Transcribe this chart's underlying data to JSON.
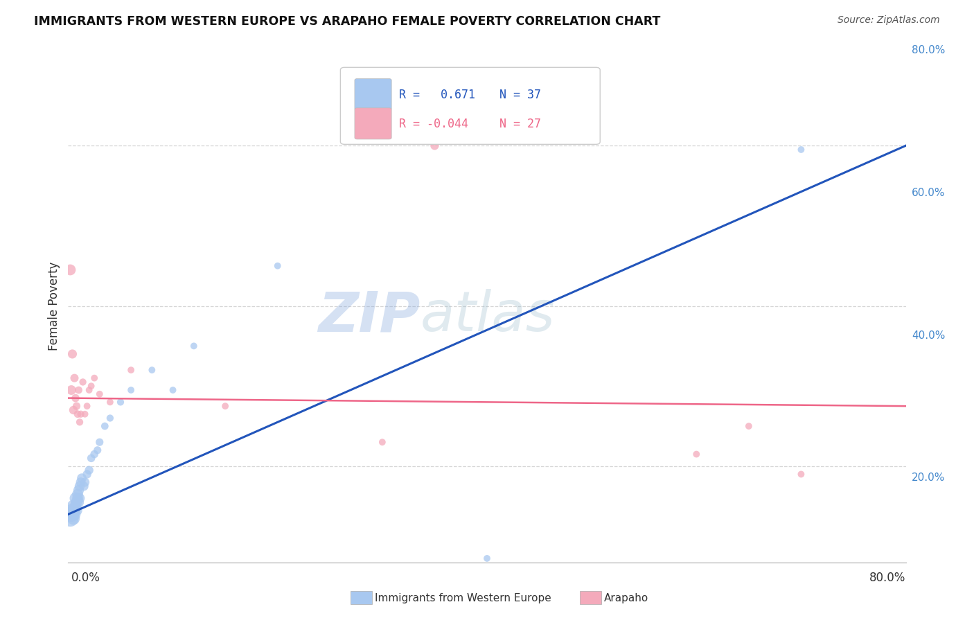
{
  "title": "IMMIGRANTS FROM WESTERN EUROPE VS ARAPAHO FEMALE POVERTY CORRELATION CHART",
  "source": "Source: ZipAtlas.com",
  "ylabel": "Female Poverty",
  "watermark_zip": "ZIP",
  "watermark_atlas": "atlas",
  "legend_blue_r": "R =   0.671",
  "legend_blue_n": "N = 37",
  "legend_pink_r": "R = -0.044",
  "legend_pink_n": "N = 27",
  "blue_color": "#A8C8F0",
  "pink_color": "#F4AABB",
  "blue_line_color": "#2255BB",
  "pink_line_color": "#EE6688",
  "blue_scatter_x": [
    0.002,
    0.003,
    0.004,
    0.005,
    0.005,
    0.006,
    0.006,
    0.007,
    0.007,
    0.008,
    0.008,
    0.009,
    0.009,
    0.01,
    0.01,
    0.011,
    0.011,
    0.012,
    0.013,
    0.015,
    0.016,
    0.018,
    0.02,
    0.022,
    0.025,
    0.028,
    0.03,
    0.035,
    0.04,
    0.05,
    0.06,
    0.08,
    0.1,
    0.12,
    0.2,
    0.4,
    0.7
  ],
  "blue_scatter_y": [
    0.135,
    0.14,
    0.145,
    0.135,
    0.15,
    0.14,
    0.145,
    0.15,
    0.16,
    0.145,
    0.155,
    0.16,
    0.165,
    0.155,
    0.17,
    0.16,
    0.175,
    0.18,
    0.185,
    0.175,
    0.18,
    0.19,
    0.195,
    0.21,
    0.215,
    0.22,
    0.23,
    0.25,
    0.26,
    0.28,
    0.295,
    0.32,
    0.295,
    0.35,
    0.45,
    0.085,
    0.595
  ],
  "pink_scatter_x": [
    0.002,
    0.003,
    0.004,
    0.005,
    0.006,
    0.007,
    0.008,
    0.009,
    0.01,
    0.011,
    0.012,
    0.014,
    0.016,
    0.018,
    0.02,
    0.022,
    0.025,
    0.03,
    0.04,
    0.06,
    0.15,
    0.3,
    0.35,
    0.5,
    0.6,
    0.65,
    0.7
  ],
  "pink_scatter_y": [
    0.445,
    0.295,
    0.34,
    0.27,
    0.31,
    0.285,
    0.275,
    0.265,
    0.295,
    0.255,
    0.265,
    0.305,
    0.265,
    0.275,
    0.295,
    0.3,
    0.31,
    0.29,
    0.28,
    0.32,
    0.275,
    0.23,
    0.6,
    0.63,
    0.215,
    0.25,
    0.19
  ],
  "blue_sizes": [
    300,
    250,
    200,
    180,
    180,
    160,
    160,
    150,
    150,
    140,
    140,
    130,
    130,
    120,
    120,
    110,
    110,
    100,
    100,
    90,
    90,
    80,
    80,
    70,
    70,
    65,
    65,
    60,
    55,
    55,
    50,
    50,
    50,
    50,
    50,
    50,
    50
  ],
  "pink_sizes": [
    130,
    100,
    90,
    80,
    75,
    70,
    65,
    60,
    60,
    55,
    55,
    55,
    50,
    50,
    50,
    50,
    50,
    50,
    50,
    50,
    50,
    50,
    80,
    80,
    50,
    50,
    50
  ],
  "blue_trend_x": [
    0.0,
    0.8
  ],
  "blue_trend_y": [
    0.14,
    0.6
  ],
  "pink_trend_x": [
    0.0,
    0.8
  ],
  "pink_trend_y": [
    0.285,
    0.275
  ],
  "ylim_min": 0.08,
  "ylim_max": 0.72,
  "xlim_min": 0.0,
  "xlim_max": 0.8,
  "grid_yticks": [
    0.2,
    0.4,
    0.6,
    0.8
  ],
  "grid_yticklabels": [
    "20.0%",
    "40.0%",
    "60.0%",
    "80.0%"
  ]
}
